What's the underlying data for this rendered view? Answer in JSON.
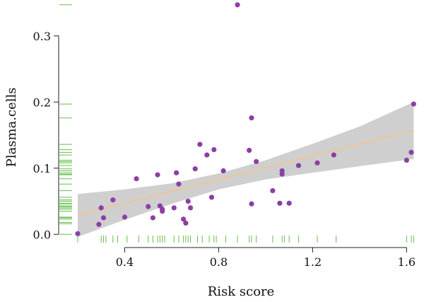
{
  "chart_data": {
    "type": "scatter",
    "xlabel": "Risk score",
    "ylabel": "Plasma.cells",
    "xlim": [
      0.17,
      1.65
    ],
    "ylim": [
      -0.02,
      0.35
    ],
    "x_ticks": [
      0.4,
      0.8,
      1.2,
      1.6
    ],
    "x_tick_labels": [
      "0.4",
      "0.8",
      "1.2",
      "1.6"
    ],
    "y_ticks": [
      0.0,
      0.1,
      0.2,
      0.3
    ],
    "y_tick_labels": [
      "0.0",
      "0.1",
      "0.2",
      "0.3"
    ],
    "grid": false,
    "points": [
      {
        "x": 0.2,
        "y": 0.001
      },
      {
        "x": 0.29,
        "y": 0.015
      },
      {
        "x": 0.3,
        "y": 0.04
      },
      {
        "x": 0.31,
        "y": 0.025
      },
      {
        "x": 0.35,
        "y": 0.052
      },
      {
        "x": 0.4,
        "y": 0.026
      },
      {
        "x": 0.45,
        "y": 0.084
      },
      {
        "x": 0.5,
        "y": 0.042
      },
      {
        "x": 0.52,
        "y": 0.025
      },
      {
        "x": 0.54,
        "y": 0.09
      },
      {
        "x": 0.55,
        "y": 0.043
      },
      {
        "x": 0.56,
        "y": 0.035
      },
      {
        "x": 0.56,
        "y": 0.038
      },
      {
        "x": 0.61,
        "y": 0.04
      },
      {
        "x": 0.62,
        "y": 0.093
      },
      {
        "x": 0.63,
        "y": 0.076
      },
      {
        "x": 0.65,
        "y": 0.023
      },
      {
        "x": 0.66,
        "y": 0.017
      },
      {
        "x": 0.67,
        "y": 0.05
      },
      {
        "x": 0.68,
        "y": 0.04
      },
      {
        "x": 0.7,
        "y": 0.099
      },
      {
        "x": 0.72,
        "y": 0.136
      },
      {
        "x": 0.75,
        "y": 0.12
      },
      {
        "x": 0.77,
        "y": 0.056
      },
      {
        "x": 0.78,
        "y": 0.128
      },
      {
        "x": 0.82,
        "y": 0.096
      },
      {
        "x": 0.88,
        "y": 0.347
      },
      {
        "x": 0.93,
        "y": 0.127
      },
      {
        "x": 0.94,
        "y": 0.176
      },
      {
        "x": 0.94,
        "y": 0.046
      },
      {
        "x": 0.96,
        "y": 0.11
      },
      {
        "x": 1.03,
        "y": 0.066
      },
      {
        "x": 1.06,
        "y": 0.047
      },
      {
        "x": 1.07,
        "y": 0.096
      },
      {
        "x": 1.07,
        "y": 0.091
      },
      {
        "x": 1.1,
        "y": 0.047
      },
      {
        "x": 1.14,
        "y": 0.104
      },
      {
        "x": 1.22,
        "y": 0.108
      },
      {
        "x": 1.29,
        "y": 0.12
      },
      {
        "x": 1.6,
        "y": 0.112
      },
      {
        "x": 1.62,
        "y": 0.124
      },
      {
        "x": 1.63,
        "y": 0.197
      }
    ],
    "fit_line": {
      "x": [
        0.2,
        1.63
      ],
      "y": [
        0.029,
        0.157
      ]
    },
    "confidence_band": {
      "x": [
        0.2,
        0.4,
        0.6,
        0.8,
        1.0,
        1.2,
        1.4,
        1.63
      ],
      "lower": [
        -0.004,
        0.022,
        0.046,
        0.068,
        0.083,
        0.093,
        0.103,
        0.114
      ],
      "upper": [
        0.061,
        0.068,
        0.077,
        0.092,
        0.112,
        0.137,
        0.163,
        0.2
      ]
    },
    "rug_x": [
      0.2,
      0.3,
      0.31,
      0.32,
      0.35,
      0.37,
      0.41,
      0.46,
      0.5,
      0.52,
      0.54,
      0.55,
      0.56,
      0.57,
      0.61,
      0.63,
      0.65,
      0.66,
      0.67,
      0.68,
      0.71,
      0.73,
      0.76,
      0.78,
      0.79,
      0.83,
      0.88,
      0.93,
      0.94,
      0.96,
      1.03,
      1.07,
      1.08,
      1.1,
      1.14,
      1.22,
      1.3,
      1.6,
      1.62,
      1.63
    ],
    "rug_y": [
      0.0,
      0.016,
      0.018,
      0.023,
      0.025,
      0.026,
      0.035,
      0.038,
      0.04,
      0.042,
      0.043,
      0.046,
      0.047,
      0.05,
      0.052,
      0.056,
      0.066,
      0.076,
      0.084,
      0.09,
      0.091,
      0.093,
      0.096,
      0.099,
      0.104,
      0.108,
      0.11,
      0.112,
      0.12,
      0.124,
      0.128,
      0.136,
      0.176,
      0.197,
      0.347
    ],
    "colors": {
      "points": "#8b3fa6",
      "fit_line": "#f4c48a",
      "band": "#cfcfcf",
      "rug": "#64bf4b",
      "axis": "#222222"
    }
  }
}
